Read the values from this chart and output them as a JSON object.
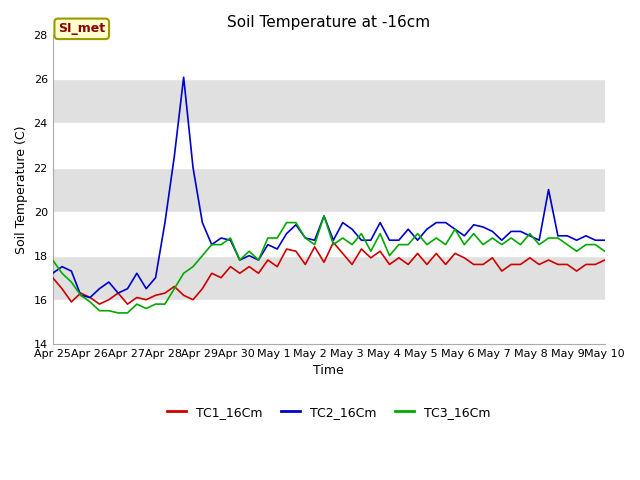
{
  "title": "Soil Temperature at -16cm",
  "xlabel": "Time",
  "ylabel": "Soil Temperature (C)",
  "ylim": [
    14,
    28
  ],
  "yticks": [
    14,
    16,
    18,
    20,
    22,
    24,
    26,
    28
  ],
  "annotation_label": "SI_met",
  "annotation_color": "#8B0000",
  "annotation_bg": "#FFFFCC",
  "annotation_edge": "#999900",
  "plot_bg_light": "#FFFFFF",
  "plot_bg_dark": "#DCDCDC",
  "grid_color": "#FFFFFF",
  "x_labels": [
    "Apr 25",
    "Apr 26",
    "Apr 27",
    "Apr 28",
    "Apr 29",
    "Apr 30",
    "May 1",
    "May 2",
    "May 3",
    "May 4",
    "May 5",
    "May 6",
    "May 7",
    "May 8",
    "May 9",
    "May 10"
  ],
  "TC1_color": "#CC0000",
  "TC2_color": "#0000CC",
  "TC3_color": "#00AA00",
  "TC1_label": "TC1_16Cm",
  "TC2_label": "TC2_16Cm",
  "TC3_label": "TC3_16Cm",
  "TC1": [
    17.0,
    16.5,
    15.9,
    16.3,
    16.1,
    15.8,
    16.0,
    16.3,
    15.8,
    16.1,
    16.0,
    16.2,
    16.3,
    16.6,
    16.2,
    16.0,
    16.5,
    17.2,
    17.0,
    17.5,
    17.2,
    17.5,
    17.2,
    17.8,
    17.5,
    18.3,
    18.2,
    17.6,
    18.4,
    17.7,
    18.6,
    18.1,
    17.6,
    18.3,
    17.9,
    18.2,
    17.6,
    17.9,
    17.6,
    18.1,
    17.6,
    18.1,
    17.6,
    18.1,
    17.9,
    17.6,
    17.6,
    17.9,
    17.3,
    17.6,
    17.6,
    17.9,
    17.6,
    17.8,
    17.6,
    17.6,
    17.3,
    17.6,
    17.6,
    17.8
  ],
  "TC2": [
    17.2,
    17.5,
    17.3,
    16.2,
    16.1,
    16.5,
    16.8,
    16.3,
    16.5,
    17.2,
    16.5,
    17.0,
    19.5,
    22.5,
    26.1,
    22.0,
    19.5,
    18.5,
    18.8,
    18.7,
    17.8,
    18.0,
    17.8,
    18.5,
    18.3,
    19.0,
    19.4,
    18.8,
    18.7,
    19.8,
    18.7,
    19.5,
    19.2,
    18.7,
    18.7,
    19.5,
    18.7,
    18.7,
    19.2,
    18.7,
    19.2,
    19.5,
    19.5,
    19.2,
    18.9,
    19.4,
    19.3,
    19.1,
    18.7,
    19.1,
    19.1,
    18.9,
    18.7,
    21.0,
    18.9,
    18.9,
    18.7,
    18.9,
    18.7,
    18.7
  ],
  "TC3": [
    17.8,
    17.2,
    16.8,
    16.2,
    15.9,
    15.5,
    15.5,
    15.4,
    15.4,
    15.8,
    15.6,
    15.8,
    15.8,
    16.5,
    17.2,
    17.5,
    18.0,
    18.5,
    18.5,
    18.8,
    17.8,
    18.2,
    17.8,
    18.8,
    18.8,
    19.5,
    19.5,
    18.8,
    18.5,
    19.8,
    18.5,
    18.8,
    18.5,
    19.0,
    18.2,
    19.0,
    18.0,
    18.5,
    18.5,
    19.0,
    18.5,
    18.8,
    18.5,
    19.2,
    18.5,
    19.0,
    18.5,
    18.8,
    18.5,
    18.8,
    18.5,
    19.0,
    18.5,
    18.8,
    18.8,
    18.5,
    18.2,
    18.5,
    18.5,
    18.2
  ]
}
